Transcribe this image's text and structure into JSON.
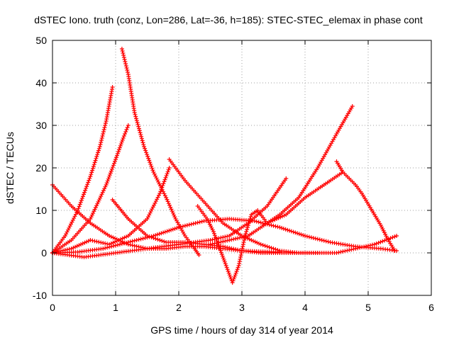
{
  "chart_data": {
    "type": "scatter",
    "title": "dSTEC Iono. truth (conz, Lon=286, Lat=-36, h=185): STEC-STEC_elemax in phase cont",
    "xlabel": "GPS time / hours of day 314 of year 2014",
    "ylabel": "dSTEC  / TECUs",
    "xlim": [
      0,
      6
    ],
    "ylim": [
      -10,
      50
    ],
    "xticks": [
      0,
      1,
      2,
      3,
      4,
      5,
      6
    ],
    "yticks": [
      -10,
      0,
      10,
      20,
      30,
      40,
      50
    ],
    "grid": true,
    "marker": "plus",
    "color": "#ff0000",
    "series": [
      {
        "x": [
          0.0,
          0.2,
          0.4,
          0.6,
          0.75,
          0.85,
          0.95
        ],
        "y": [
          0,
          4,
          10,
          18,
          25,
          31,
          39
        ]
      },
      {
        "x": [
          0.0,
          0.3,
          0.6,
          0.85,
          1.0,
          1.12,
          1.2
        ],
        "y": [
          0,
          3,
          8,
          16,
          22,
          27,
          30
        ]
      },
      {
        "x": [
          1.1,
          1.2,
          1.3,
          1.45,
          1.6,
          1.8,
          1.95,
          2.1,
          2.25,
          2.32
        ],
        "y": [
          48,
          42,
          33,
          25,
          19,
          13,
          8,
          4,
          1,
          -0.5
        ]
      },
      {
        "x": [
          0.0,
          0.3,
          0.6,
          0.9,
          1.2,
          1.5,
          1.8,
          2.1,
          2.4,
          2.7,
          3.0,
          3.3,
          3.6
        ],
        "y": [
          16,
          11,
          7,
          4,
          2,
          1,
          1,
          1.5,
          1.5,
          1,
          0.5,
          0.3,
          0.2
        ]
      },
      {
        "x": [
          0.0,
          0.4,
          0.8,
          1.2,
          1.6,
          2.0,
          2.4,
          2.8,
          3.2,
          3.6,
          4.0,
          4.4,
          4.8,
          5.2,
          5.45
        ],
        "y": [
          0,
          0.2,
          1,
          2.5,
          4,
          6,
          7.5,
          8,
          7.5,
          6,
          4,
          2.5,
          1.5,
          1,
          0.5
        ]
      },
      {
        "x": [
          0.0,
          0.3,
          0.6,
          0.9,
          1.2,
          1.5,
          1.7,
          1.85
        ],
        "y": [
          0,
          1,
          3,
          2,
          4,
          8,
          14,
          20
        ]
      },
      {
        "x": [
          1.85,
          2.1,
          2.4,
          2.7,
          3.0,
          3.3,
          3.6,
          3.9,
          4.2
        ],
        "y": [
          22,
          17,
          12,
          7,
          4,
          2,
          0.5,
          0,
          0
        ]
      },
      {
        "x": [
          0.95,
          1.2,
          1.5,
          1.8,
          2.1,
          2.4,
          2.7,
          3.0,
          3.3,
          3.6,
          3.9,
          4.2,
          4.5,
          4.8,
          5.1,
          5.45
        ],
        "y": [
          12.5,
          8,
          4,
          2.5,
          2.5,
          2,
          1.5,
          0.5,
          0,
          0,
          0,
          0,
          0,
          1,
          2,
          4
        ]
      },
      {
        "x": [
          0.0,
          0.5,
          1.0,
          1.5,
          2.0,
          2.5,
          2.8,
          3.1,
          3.4,
          3.7
        ],
        "y": [
          0,
          -1,
          0,
          1,
          2,
          3,
          4,
          7,
          11,
          17.5
        ]
      },
      {
        "x": [
          2.3,
          2.45,
          2.55,
          2.65,
          2.75,
          2.85,
          2.95,
          3.05,
          3.15,
          3.25,
          3.4,
          3.6,
          3.9,
          4.2,
          4.5,
          4.75
        ],
        "y": [
          11,
          8,
          5,
          1,
          -3,
          -7,
          -3,
          4,
          9,
          10,
          7,
          9,
          13,
          20,
          28,
          34.5
        ]
      },
      {
        "x": [
          2.5,
          2.8,
          3.1,
          3.4,
          3.7,
          4.0,
          4.3,
          4.6
        ],
        "y": [
          2,
          3,
          4,
          7,
          9,
          13,
          16,
          19
        ]
      },
      {
        "x": [
          4.5,
          4.6,
          4.7,
          4.8,
          4.9,
          5.0,
          5.1,
          5.2,
          5.3,
          5.42
        ],
        "y": [
          21.5,
          19,
          17.5,
          16,
          14,
          11.5,
          9,
          6.5,
          3.5,
          0.5
        ]
      }
    ]
  }
}
